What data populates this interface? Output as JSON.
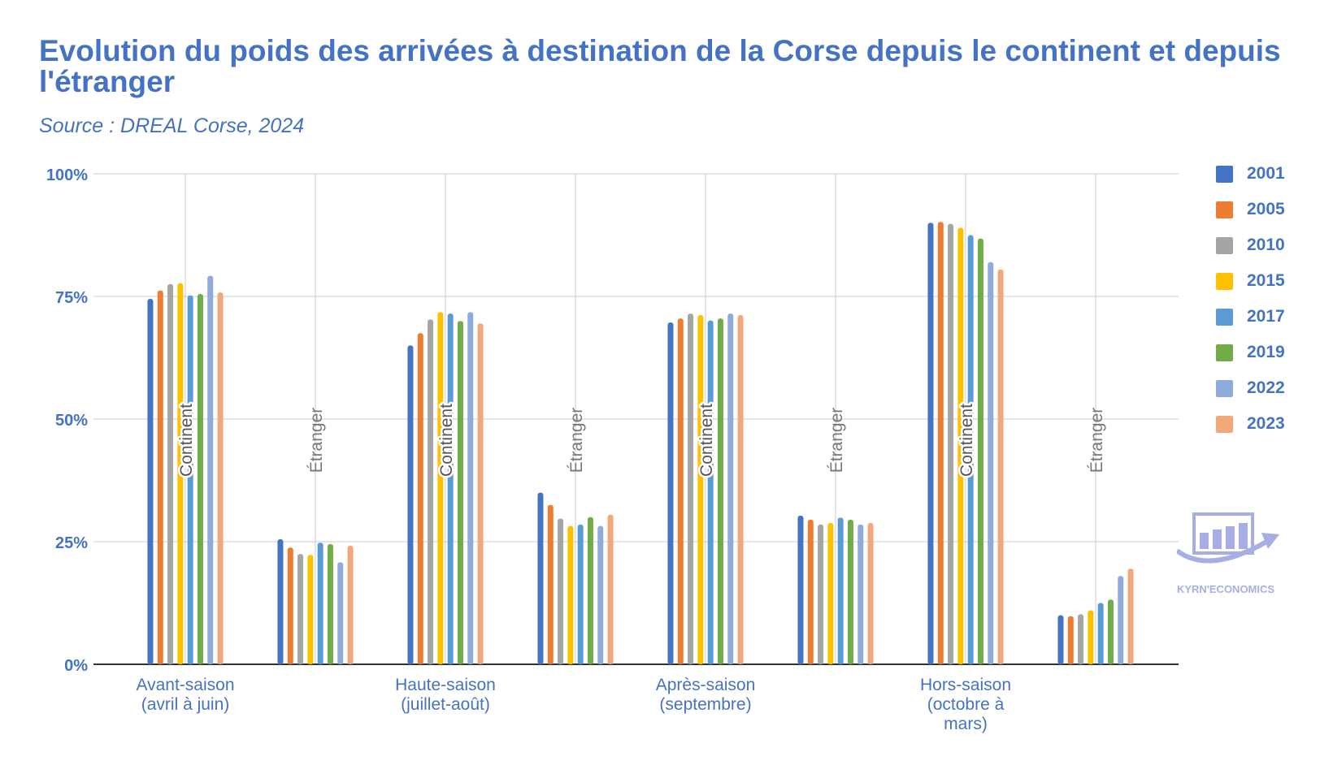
{
  "title": "Evolution du poids des arrivées à destination de la Corse depuis le continent et depuis l'étranger",
  "subtitle": "Source : DREAL Corse, 2024",
  "colors": {
    "accent": "#4472c4",
    "grid": "#cccccc",
    "axis": "#333333",
    "label_gray": "#777777"
  },
  "logo": {
    "text": "KYRN'ECONOMICS",
    "icon": "bar-chart-arrow-icon",
    "color": "#a7aee6"
  },
  "chart_data": {
    "type": "bar",
    "ylim": [
      0,
      1
    ],
    "y_ticks": [
      "0%",
      "25%",
      "50%",
      "75%",
      "100%"
    ],
    "y_tick_values": [
      0,
      0.25,
      0.5,
      0.75,
      1
    ],
    "grid": true,
    "legend_position": "right",
    "categories": [
      {
        "label": "Avant-saison (avril à juin)",
        "lines": [
          "Avant-saison",
          "(avril à juin)"
        ]
      },
      {
        "label": "Haute-saison (juillet-août)",
        "lines": [
          "Haute-saison",
          "(juillet-août)"
        ]
      },
      {
        "label": "Après-saison (septembre)",
        "lines": [
          "Après-saison",
          "(septembre)"
        ]
      },
      {
        "label": "Hors-saison (octobre à mars)",
        "lines": [
          "Hors-saison",
          "(octobre à",
          "mars)"
        ]
      }
    ],
    "group_labels": [
      "Continent",
      "Étranger"
    ],
    "series": [
      {
        "name": "2001",
        "color": "#4472c4",
        "continent": [
          0.745,
          0.65,
          0.697,
          0.9
        ],
        "etranger": [
          0.255,
          0.35,
          0.303,
          0.1
        ]
      },
      {
        "name": "2005",
        "color": "#ed7d31",
        "continent": [
          0.762,
          0.675,
          0.705,
          0.902
        ],
        "etranger": [
          0.238,
          0.325,
          0.295,
          0.098
        ]
      },
      {
        "name": "2010",
        "color": "#a5a5a5",
        "continent": [
          0.775,
          0.703,
          0.715,
          0.898
        ],
        "etranger": [
          0.225,
          0.297,
          0.285,
          0.102
        ]
      },
      {
        "name": "2015",
        "color": "#ffc000",
        "continent": [
          0.777,
          0.718,
          0.712,
          0.89
        ],
        "etranger": [
          0.223,
          0.282,
          0.288,
          0.11
        ]
      },
      {
        "name": "2017",
        "color": "#5b9bd5",
        "continent": [
          0.752,
          0.715,
          0.701,
          0.875
        ],
        "etranger": [
          0.248,
          0.285,
          0.299,
          0.125
        ]
      },
      {
        "name": "2019",
        "color": "#70ad47",
        "continent": [
          0.755,
          0.7,
          0.705,
          0.868
        ],
        "etranger": [
          0.245,
          0.3,
          0.295,
          0.132
        ]
      },
      {
        "name": "2022",
        "color": "#8faadc",
        "continent": [
          0.792,
          0.718,
          0.715,
          0.82
        ],
        "etranger": [
          0.208,
          0.282,
          0.285,
          0.18
        ]
      },
      {
        "name": "2023",
        "color": "#f4a77a",
        "continent": [
          0.758,
          0.695,
          0.712,
          0.805
        ],
        "etranger": [
          0.242,
          0.305,
          0.288,
          0.195
        ]
      }
    ]
  }
}
